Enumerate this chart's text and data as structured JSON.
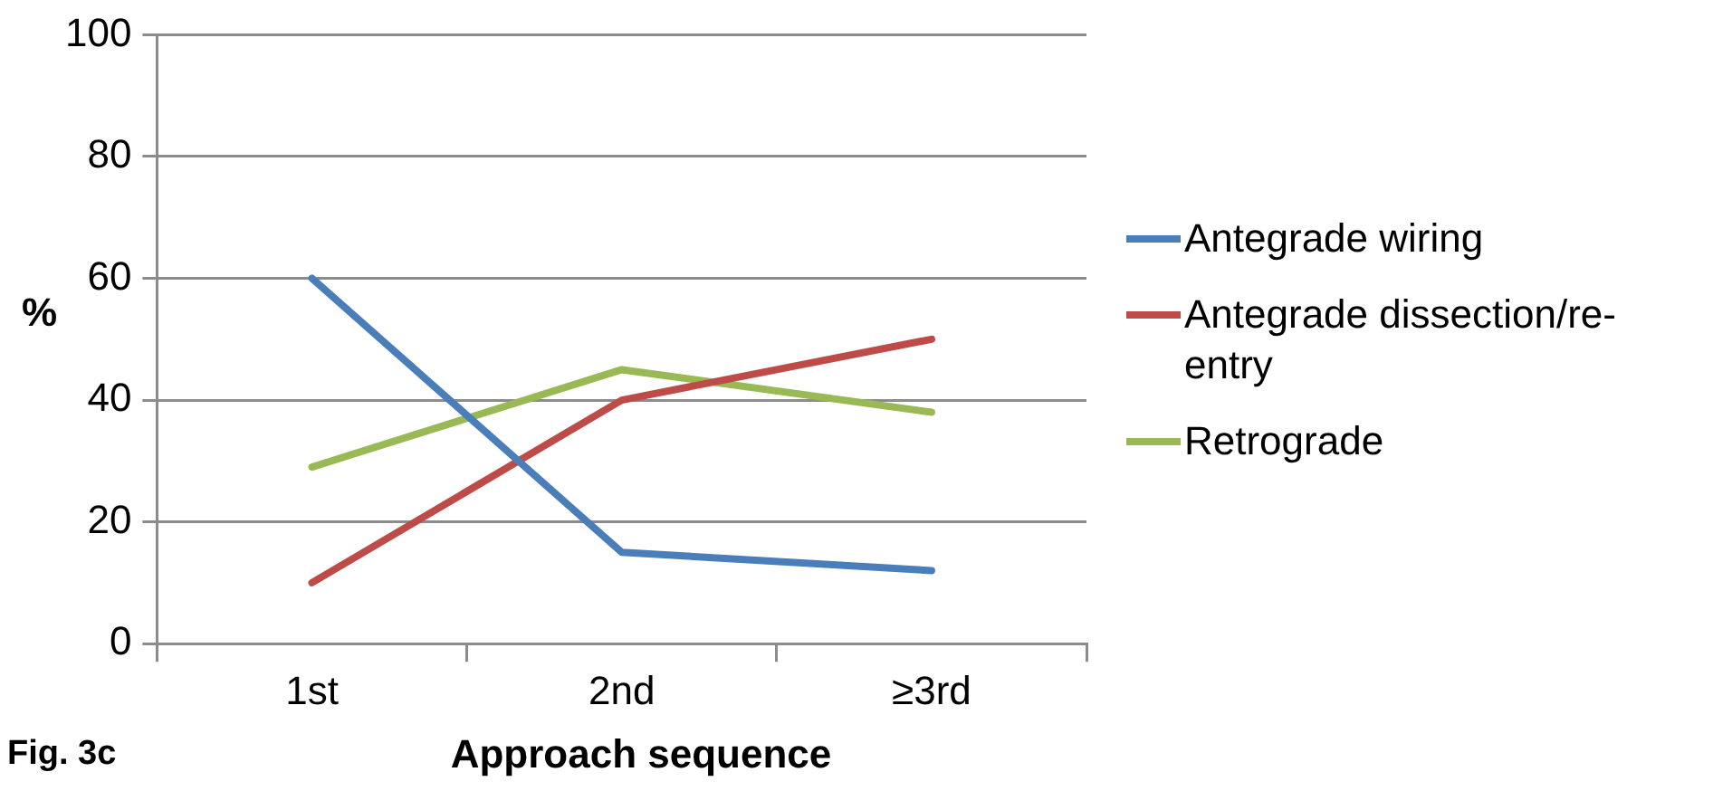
{
  "chart_data": {
    "type": "line",
    "xlabel": "Approach sequence",
    "ylabel": "%",
    "categories": [
      "1st",
      "2nd",
      "≥3rd"
    ],
    "series": [
      {
        "name": "Antegrade wiring",
        "color": "#4a7ebb",
        "values": [
          60,
          15,
          12
        ]
      },
      {
        "name": "Antegrade dissection/re-entry",
        "color": "#be4b48",
        "values": [
          10,
          40,
          50
        ]
      },
      {
        "name": "Retrograde",
        "color": "#98b954",
        "values": [
          29,
          45,
          38
        ]
      }
    ],
    "ylim": [
      0,
      100
    ],
    "yticks": [
      0,
      20,
      40,
      60,
      80,
      100
    ],
    "grid": "y",
    "legend": "right",
    "marker": "none",
    "line_style": "solid",
    "annotations": [
      "Fig. 3c"
    ]
  }
}
